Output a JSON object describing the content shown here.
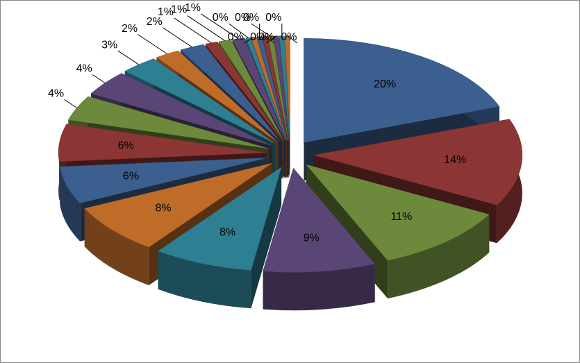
{
  "chart_data": {
    "type": "pie",
    "values": [
      20,
      14,
      11,
      9,
      8,
      8,
      6,
      6,
      4,
      4,
      3,
      2,
      2,
      1,
      1,
      1,
      0.4,
      0.4,
      0.4,
      0.4,
      0.4,
      0.4,
      0.4,
      0.4
    ],
    "value_labels": [
      "20%",
      "14%",
      "11%",
      "9%",
      "8%",
      "8%",
      "6%",
      "6%",
      "4%",
      "4%",
      "3%",
      "2%",
      "2%",
      "1%",
      "1%",
      "1%",
      "0%",
      "0%",
      "0%",
      "0%",
      "0%",
      "0%",
      "0%",
      "0%"
    ],
    "colors": [
      "#3b5f8f",
      "#8b3634",
      "#6d8a3c",
      "#5a4676",
      "#2f7f92",
      "#c06c29",
      "#3b5f8f",
      "#8b3634",
      "#6d8a3c",
      "#5a4676",
      "#2f7f92",
      "#c06c29",
      "#3b5f8f",
      "#8b3634",
      "#6d8a3c",
      "#5a4676",
      "#2f7f92",
      "#c06c29",
      "#3b5f8f",
      "#8b3634",
      "#6d8a3c",
      "#5a4676",
      "#2f7f92",
      "#c06c29"
    ]
  }
}
